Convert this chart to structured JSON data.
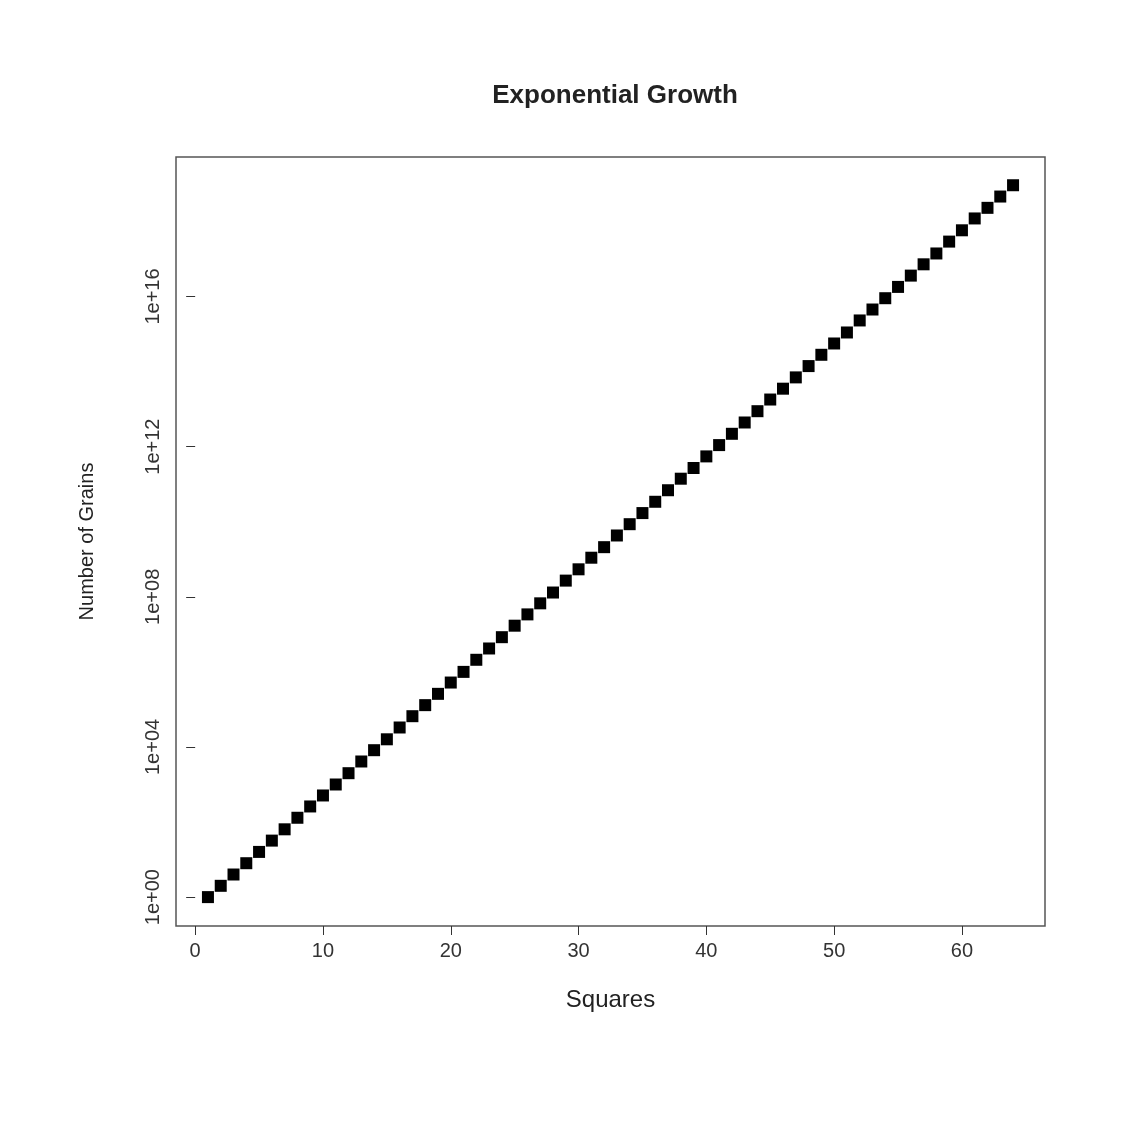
{
  "chart_data": {
    "type": "scatter",
    "title": "Exponential Growth",
    "xlabel": "Squares",
    "ylabel": "Number of Grains",
    "x": [
      1,
      2,
      3,
      4,
      5,
      6,
      7,
      8,
      9,
      10,
      11,
      12,
      13,
      14,
      15,
      16,
      17,
      18,
      19,
      20,
      21,
      22,
      23,
      24,
      25,
      26,
      27,
      28,
      29,
      30,
      31,
      32,
      33,
      34,
      35,
      36,
      37,
      38,
      39,
      40,
      41,
      42,
      43,
      44,
      45,
      46,
      47,
      48,
      49,
      50,
      51,
      52,
      53,
      54,
      55,
      56,
      57,
      58,
      59,
      60,
      61,
      62,
      63,
      64
    ],
    "values": [
      1,
      2,
      4,
      8,
      16,
      32,
      64,
      130,
      260,
      510,
      1000,
      2000,
      4100,
      8200,
      16000,
      33000,
      66000,
      130000,
      260000,
      520000,
      1000000,
      2100000,
      4200000,
      8400000,
      17000000,
      34000000,
      67000000,
      130000000,
      270000000,
      540000000,
      1100000000,
      2100000000,
      4300000000,
      8600000000,
      17000000000,
      34000000000,
      69000000000,
      140000000000,
      270000000000,
      550000000000,
      1100000000000,
      2200000000000,
      4400000000000,
      8800000000000,
      18000000000000,
      35000000000000,
      70000000000000,
      140000000000000,
      280000000000000,
      560000000000000,
      1100000000000000,
      2300000000000000,
      4500000000000000,
      9000000000000000,
      18000000000000000,
      36000000000000000,
      72000000000000000,
      140000000000000000,
      290000000000000000,
      580000000000000000,
      1200000000000000000,
      2300000000000000000,
      4600000000000000000,
      9200000000000000000
    ],
    "color": "#000000",
    "marker": "square",
    "log": "y",
    "grid": false,
    "xlim": [
      -1.5,
      66.5
    ],
    "xticks": [
      0,
      10,
      20,
      30,
      40,
      50,
      60
    ],
    "ylim": [
      0.17,
      52000000000000000000
    ],
    "yticks": [
      {
        "value": 1,
        "label": "1e+00"
      },
      {
        "value": 10000,
        "label": "1e+04"
      },
      {
        "value": 100000000,
        "label": "1e+08"
      },
      {
        "value": 1000000000000,
        "label": "1e+12"
      },
      {
        "value": 10000000000000000,
        "label": "1e+16"
      }
    ]
  }
}
